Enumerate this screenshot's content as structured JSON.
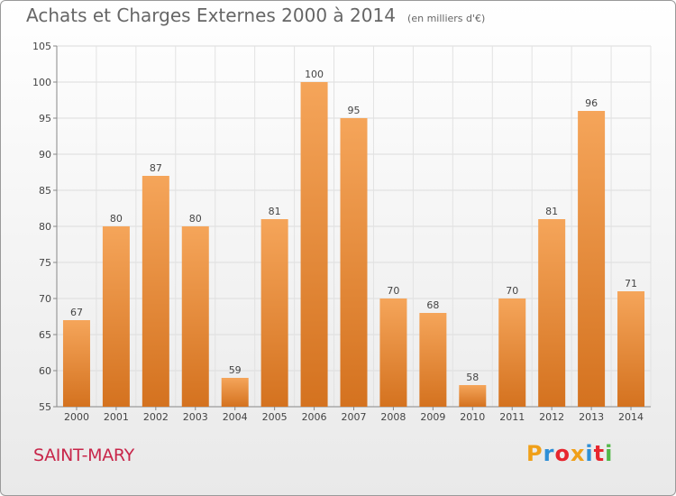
{
  "title": "Achats et Charges Externes 2000 à 2014",
  "subtitle": "(en milliers d'€)",
  "commune": "SAINT-MARY",
  "logo": {
    "letters": [
      "P",
      "r",
      "o",
      "x",
      "i",
      "t",
      "i"
    ],
    "colors": [
      "#f0a019",
      "#2f8fd6",
      "#e7262e",
      "#f0a019",
      "#2f8fd6",
      "#e7262e",
      "#52b848"
    ]
  },
  "colors": {
    "bar_top": "#f5a55a",
    "bar_bottom": "#d4721f",
    "commune": "#c8264a"
  },
  "chart_data": {
    "type": "bar",
    "categories": [
      "2000",
      "2001",
      "2002",
      "2003",
      "2004",
      "2005",
      "2006",
      "2007",
      "2008",
      "2009",
      "2010",
      "2011",
      "2012",
      "2013",
      "2014"
    ],
    "values": [
      67,
      80,
      87,
      80,
      59,
      81,
      100,
      95,
      70,
      68,
      58,
      70,
      81,
      96,
      71
    ],
    "ylim": [
      55,
      105
    ],
    "yticks": [
      55,
      60,
      65,
      70,
      75,
      80,
      85,
      90,
      95,
      100,
      105
    ],
    "grid": true,
    "data_labels": true
  }
}
